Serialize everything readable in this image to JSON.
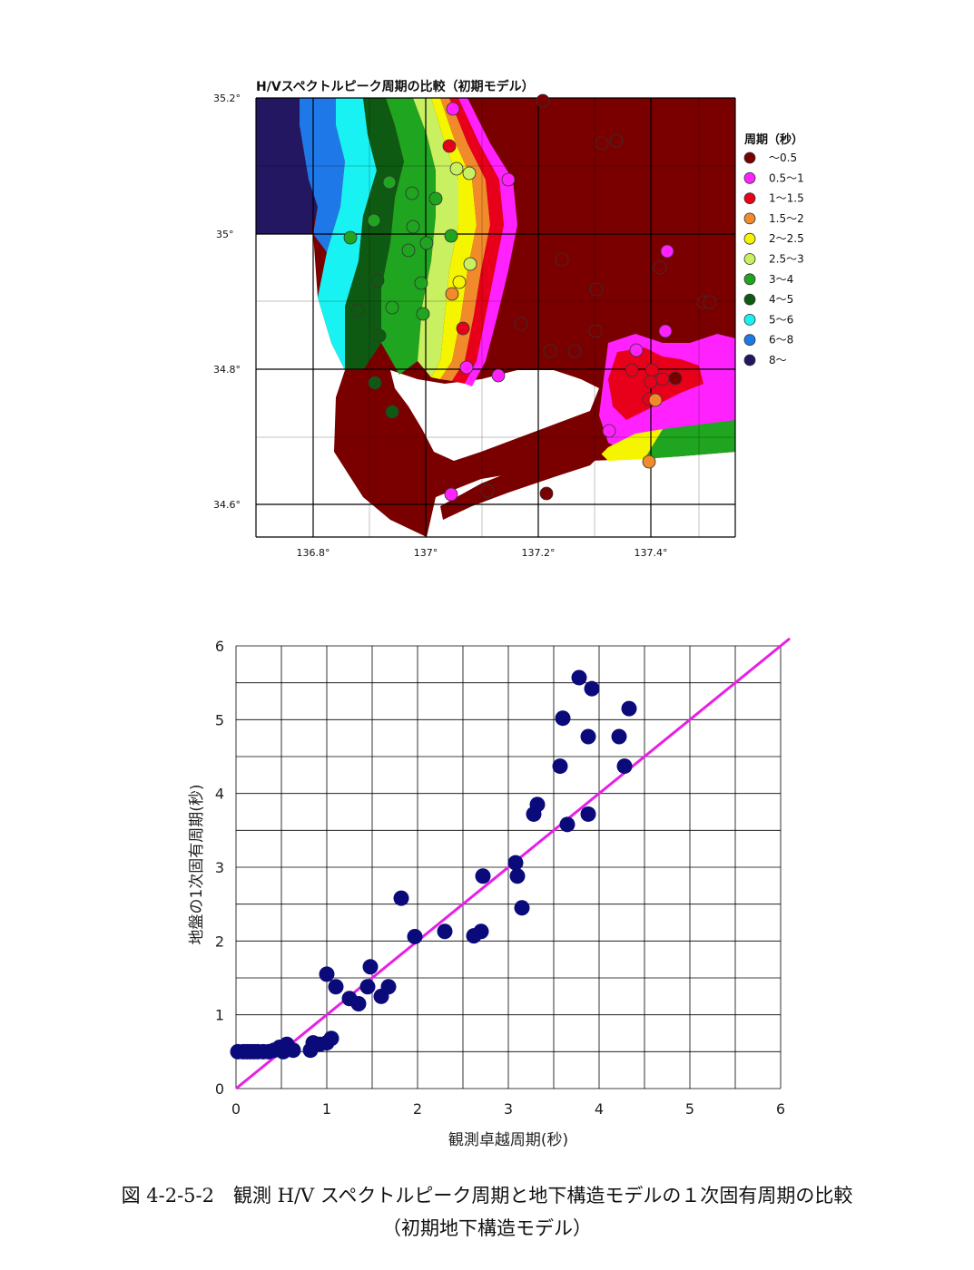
{
  "map": {
    "title": "H/Vスペクトルピーク周期の比較（初期モデル）",
    "lat_labels": [
      "35.2°",
      "35°",
      "34.8°",
      "34.6°"
    ],
    "lon_labels": [
      "136.8°",
      "137°",
      "137.2°",
      "137.4°"
    ],
    "legend_title": "周期（秒）",
    "legend": [
      {
        "label": "～0.5",
        "color": "#7a0000"
      },
      {
        "label": "0.5～1",
        "color": "#ff22ff"
      },
      {
        "label": "1～1.5",
        "color": "#e8001a"
      },
      {
        "label": "1.5～2",
        "color": "#f08a2a"
      },
      {
        "label": "2～2.5",
        "color": "#f5f500"
      },
      {
        "label": "2.5～3",
        "color": "#c8f060"
      },
      {
        "label": "3～4",
        "color": "#1fa51f"
      },
      {
        "label": "4～5",
        "color": "#0f5a12"
      },
      {
        "label": "5～6",
        "color": "#19f2f2"
      },
      {
        "label": "6～8",
        "color": "#1f78e8"
      },
      {
        "label": "8～",
        "color": "#221760"
      }
    ]
  },
  "chart_data": {
    "type": "scatter",
    "xlabel": "観測卓越周期(秒)",
    "ylabel": "地盤の1次固有周期(秒)",
    "xlim": [
      0,
      6
    ],
    "ylim": [
      0,
      6
    ],
    "xticks": [
      0,
      1,
      2,
      3,
      4,
      5,
      6
    ],
    "yticks": [
      0,
      1,
      2,
      3,
      4,
      5,
      6
    ],
    "grid": true,
    "point_color": "#0a0a7a",
    "line_color": "#e620e6",
    "reference_line": [
      [
        0,
        0
      ],
      [
        6.1,
        6.1
      ]
    ],
    "points": [
      [
        0.02,
        0.5
      ],
      [
        0.08,
        0.5
      ],
      [
        0.12,
        0.5
      ],
      [
        0.16,
        0.5
      ],
      [
        0.2,
        0.5
      ],
      [
        0.24,
        0.5
      ],
      [
        0.3,
        0.5
      ],
      [
        0.36,
        0.5
      ],
      [
        0.42,
        0.52
      ],
      [
        0.48,
        0.56
      ],
      [
        0.52,
        0.5
      ],
      [
        0.56,
        0.6
      ],
      [
        0.63,
        0.52
      ],
      [
        0.82,
        0.52
      ],
      [
        0.85,
        0.62
      ],
      [
        0.92,
        0.6
      ],
      [
        1.0,
        0.62
      ],
      [
        1.05,
        0.68
      ],
      [
        1.0,
        1.55
      ],
      [
        1.1,
        1.38
      ],
      [
        1.25,
        1.22
      ],
      [
        1.35,
        1.15
      ],
      [
        1.45,
        1.38
      ],
      [
        1.48,
        1.65
      ],
      [
        1.6,
        1.25
      ],
      [
        1.68,
        1.38
      ],
      [
        1.82,
        2.58
      ],
      [
        1.97,
        2.06
      ],
      [
        2.3,
        2.13
      ],
      [
        2.62,
        2.07
      ],
      [
        2.7,
        2.13
      ],
      [
        2.72,
        2.88
      ],
      [
        3.08,
        3.06
      ],
      [
        3.1,
        2.88
      ],
      [
        3.15,
        2.45
      ],
      [
        3.28,
        3.72
      ],
      [
        3.32,
        3.85
      ],
      [
        3.57,
        4.37
      ],
      [
        3.6,
        5.02
      ],
      [
        3.65,
        3.58
      ],
      [
        3.78,
        5.57
      ],
      [
        3.88,
        4.77
      ],
      [
        3.88,
        3.72
      ],
      [
        3.92,
        5.42
      ],
      [
        4.22,
        4.77
      ],
      [
        4.28,
        4.37
      ],
      [
        4.33,
        5.15
      ]
    ]
  },
  "caption": {
    "main": "図 4-2-5-2　観測 H/V スペクトルピーク周期と地下構造モデルの１次固有周期の比較",
    "sub": "（初期地下構造モデル）"
  }
}
